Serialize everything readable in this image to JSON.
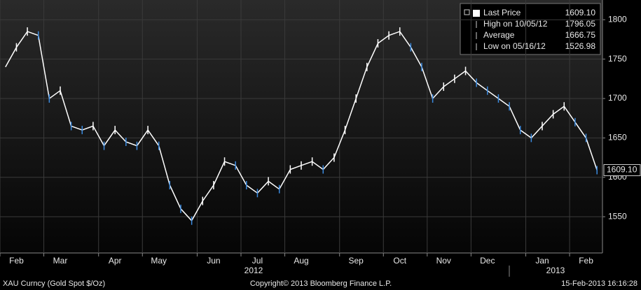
{
  "chart_data": {
    "type": "line",
    "categories": [
      "Feb",
      null,
      null,
      null,
      "Mar",
      null,
      null,
      null,
      null,
      "Apr",
      null,
      null,
      null,
      "May",
      null,
      null,
      null,
      null,
      "Jun",
      null,
      null,
      null,
      "Jul",
      null,
      null,
      null,
      "Aug",
      null,
      null,
      null,
      null,
      "Sep",
      null,
      null,
      null,
      "Oct",
      null,
      null,
      null,
      "Nov",
      null,
      null,
      null,
      "Dec",
      null,
      null,
      null,
      null,
      "Jan",
      null,
      null,
      null,
      "Feb",
      null,
      null
    ],
    "series": [
      {
        "name": "Last Price",
        "color": "#ffffff",
        "values": [
          1740,
          1765,
          1785,
          1780,
          1700,
          1710,
          1665,
          1660,
          1665,
          1640,
          1660,
          1645,
          1640,
          1660,
          1640,
          1590,
          1560,
          1545,
          1570,
          1590,
          1620,
          1615,
          1590,
          1580,
          1595,
          1585,
          1610,
          1615,
          1620,
          1610,
          1625,
          1660,
          1700,
          1740,
          1770,
          1780,
          1785,
          1765,
          1740,
          1700,
          1715,
          1725,
          1735,
          1720,
          1710,
          1700,
          1690,
          1660,
          1650,
          1665,
          1680,
          1690,
          1670,
          1650,
          1609.1
        ]
      }
    ],
    "ylim": [
      1504,
      1825
    ],
    "yticks": [
      1550,
      1600,
      1650,
      1700,
      1750,
      1800
    ],
    "grid": true,
    "year_labels": [
      "2012",
      "2013"
    ],
    "legend": [
      {
        "label": "Last Price",
        "value": 1609.1,
        "value_label": "1609.10"
      },
      {
        "label": "High on 10/05/12",
        "value": 1796.05,
        "value_label": "1796.05"
      },
      {
        "label": "Average",
        "value": 1666.75,
        "value_label": "1666.75"
      },
      {
        "label": "Low on 05/16/12",
        "value": 1526.98,
        "value_label": "1526.98"
      }
    ],
    "footer": {
      "ticker": "XAU Curncy (Gold Spot  $/Oz)",
      "copyright": "Copyright© 2013 Bloomberg Finance L.P.",
      "timestamp": "15-Feb-2013 16:16:28"
    }
  }
}
